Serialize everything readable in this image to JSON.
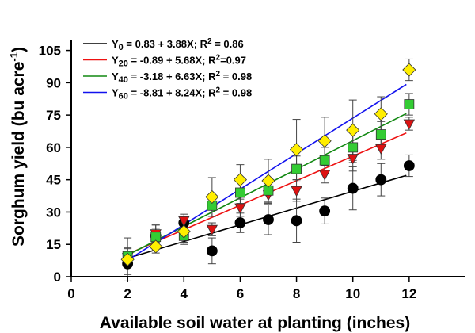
{
  "chart_data": {
    "type": "scatter",
    "xlabel": "Available soil water at planting (inches)",
    "ylabel_main": "Sorghum yield (bu acre",
    "ylabel_sup": "-1",
    "ylabel_end": ")",
    "xlim": [
      0,
      14
    ],
    "ylim": [
      0,
      110
    ],
    "x_ticks": [
      0,
      2,
      4,
      6,
      8,
      10,
      12
    ],
    "y_ticks": [
      0,
      15,
      30,
      45,
      60,
      75,
      90,
      105
    ],
    "x_tick_labels": [
      "0",
      "2",
      "4",
      "6",
      "8",
      "10",
      "12"
    ],
    "y_tick_labels": [
      "0",
      "15",
      "30",
      "45",
      "60",
      "75",
      "90",
      "105"
    ],
    "series": [
      {
        "id": "y0",
        "legend_prefix": "Y",
        "legend_sub": "0",
        "legend_eq": " = 0.83 + 3.88X; R",
        "legend_sup": "2",
        "legend_r2": " = 0.86",
        "line_color": "#000000",
        "marker": "circle",
        "marker_color": "#000000",
        "intercept": 0.83,
        "slope": 3.88,
        "fit_range": [
          2,
          11.9
        ],
        "x": [
          2,
          3,
          4,
          5,
          6,
          7,
          8,
          9,
          10,
          11,
          12
        ],
        "y": [
          6,
          19,
          25,
          12,
          25,
          26.5,
          26,
          30.5,
          41,
          45,
          51.5
        ],
        "err": [
          5,
          5,
          3,
          6,
          4.5,
          7,
          10,
          6,
          10,
          7.5,
          5
        ]
      },
      {
        "id": "y20",
        "legend_prefix": "Y",
        "legend_sub": "20",
        "legend_eq": " = -0.89 + 5.68X; R",
        "legend_sup": "2",
        "legend_r2": "=0.97",
        "line_color": "#ee1111",
        "marker": "triangle-down",
        "marker_color": "#dd1111",
        "intercept": -0.89,
        "slope": 5.68,
        "fit_range": [
          2,
          11.9
        ],
        "x": [
          2,
          3,
          4,
          5,
          6,
          7,
          8,
          9,
          10,
          11,
          12
        ],
        "y": [
          9,
          20,
          26,
          22,
          32,
          38,
          40,
          47.5,
          55,
          59.5,
          71
        ],
        "err": [
          4,
          4,
          3,
          3,
          4,
          4,
          5,
          4,
          6,
          5,
          3
        ]
      },
      {
        "id": "y40",
        "legend_prefix": "Y",
        "legend_sub": "40",
        "legend_eq": " = -3.18 + 6.63X; R",
        "legend_sup": "2",
        "legend_r2": " = 0.98",
        "line_color": "#118811",
        "marker": "square",
        "marker_color": "#33cc33",
        "intercept": -3.18,
        "slope": 6.63,
        "fit_range": [
          2,
          11.9
        ],
        "x": [
          2,
          3,
          4,
          5,
          6,
          7,
          8,
          9,
          10,
          11,
          12
        ],
        "y": [
          9.5,
          18.5,
          19,
          33,
          39,
          40,
          50,
          54,
          60,
          66,
          80
        ],
        "err": [
          4,
          4,
          3,
          5,
          5,
          5,
          6,
          6,
          7,
          6,
          5
        ]
      },
      {
        "id": "y60",
        "legend_prefix": "Y",
        "legend_sub": "60",
        "legend_eq": " = -8.81 + 8.24X; R",
        "legend_sup": "2",
        "legend_r2": " = 0.98",
        "line_color": "#1111ee",
        "marker": "diamond",
        "marker_color": "#ffee00",
        "intercept": -8.81,
        "slope": 8.24,
        "fit_range": [
          2,
          11.9
        ],
        "x": [
          2,
          3,
          4,
          5,
          6,
          7,
          8,
          9,
          10,
          11,
          12
        ],
        "y": [
          8,
          14,
          21,
          37,
          45,
          44.5,
          59,
          63,
          68,
          75.5,
          96
        ],
        "err": [
          10,
          3,
          6,
          9,
          7,
          10,
          14,
          11,
          14,
          8,
          5
        ]
      }
    ]
  }
}
